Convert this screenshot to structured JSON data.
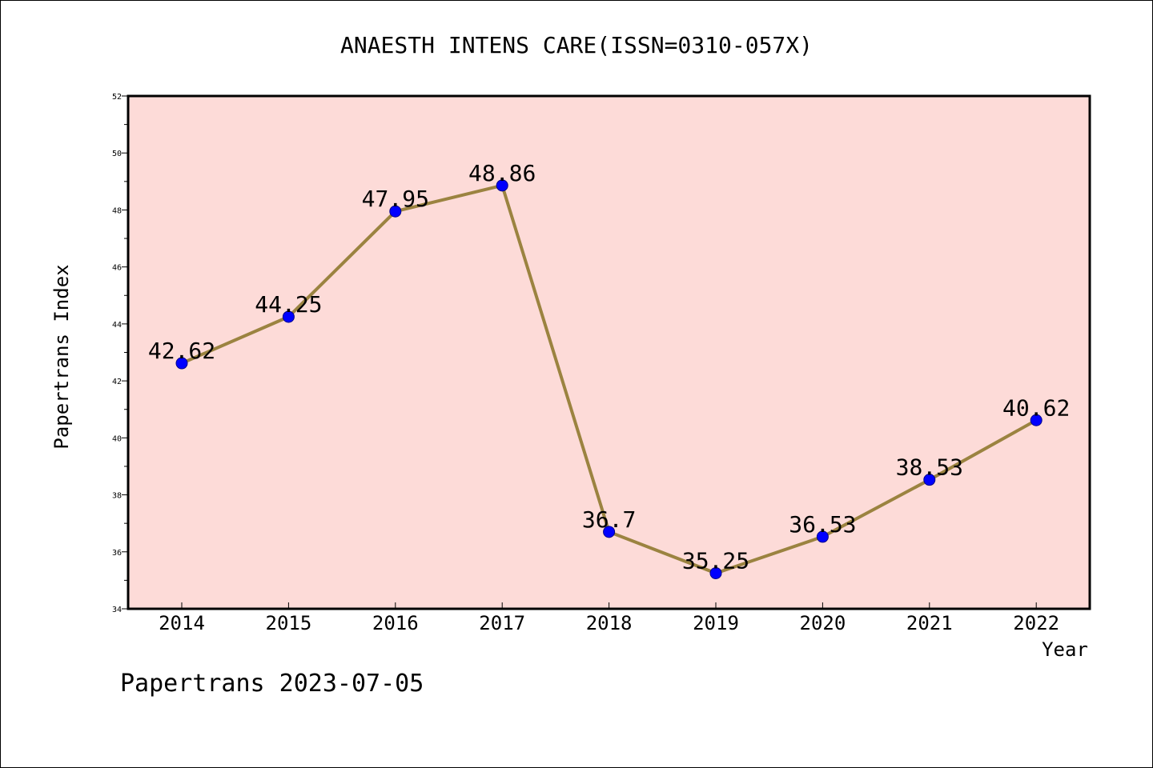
{
  "chart_data": {
    "type": "line",
    "title": "ANAESTH INTENS CARE(ISSN=0310-057X)",
    "xlabel": "Year",
    "ylabel": "Papertrans Index",
    "categories": [
      "2014",
      "2015",
      "2016",
      "2017",
      "2018",
      "2019",
      "2020",
      "2021",
      "2022"
    ],
    "series": [
      {
        "values": [
          42.62,
          44.25,
          47.95,
          48.86,
          36.7,
          35.25,
          36.53,
          38.53,
          40.62
        ]
      }
    ],
    "data_labels": [
      "42.62",
      "44.25",
      "47.95",
      "48.86",
      "36.7",
      "35.25",
      "36.53",
      "38.53",
      "40.62"
    ],
    "ylim": [
      34,
      52
    ],
    "yticks": [
      "34",
      "36",
      "38",
      "40",
      "42",
      "44",
      "46",
      "48",
      "50",
      "52"
    ],
    "grid": false,
    "colors": {
      "plot_bg": "#fddbd8",
      "line": "#9b8340",
      "marker": "#0000ff"
    }
  },
  "footer": "Papertrans 2023-07-05"
}
